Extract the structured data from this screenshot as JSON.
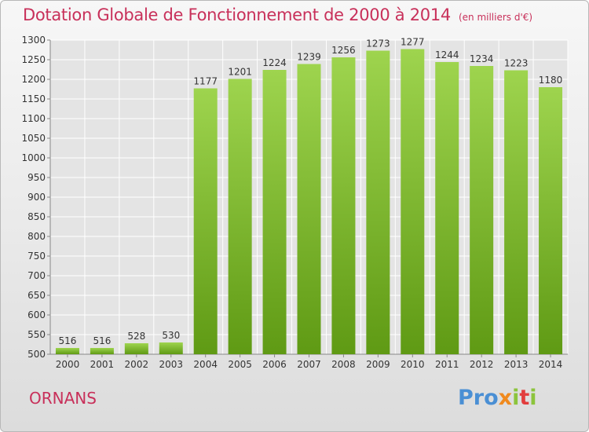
{
  "header": {
    "title": "Dotation Globale de Fonctionnement de 2000 à 2014",
    "subtitle": "(en milliers d'€)"
  },
  "footer": {
    "city": "ORNANS",
    "logo": "Proxiti"
  },
  "colors": {
    "title": "#c8305a",
    "bar_light": "#9ed44e",
    "bar_dark": "#5f9a14",
    "grid": "#ffffff"
  },
  "chart_data": {
    "type": "bar",
    "title": "Dotation Globale de Fonctionnement de 2000 à 2014",
    "subtitle": "(en milliers d'€)",
    "xlabel": "",
    "ylabel": "",
    "categories": [
      "2000",
      "2001",
      "2002",
      "2003",
      "2004",
      "2005",
      "2006",
      "2007",
      "2008",
      "2009",
      "2010",
      "2011",
      "2012",
      "2013",
      "2014"
    ],
    "values": [
      516,
      516,
      528,
      530,
      1177,
      1201,
      1224,
      1239,
      1256,
      1273,
      1277,
      1244,
      1234,
      1223,
      1180
    ],
    "ylim": [
      500,
      1300
    ],
    "yticks": [
      500,
      550,
      600,
      650,
      700,
      750,
      800,
      850,
      900,
      950,
      1000,
      1050,
      1100,
      1150,
      1200,
      1250,
      1300
    ],
    "grid": true,
    "legend": "none"
  }
}
